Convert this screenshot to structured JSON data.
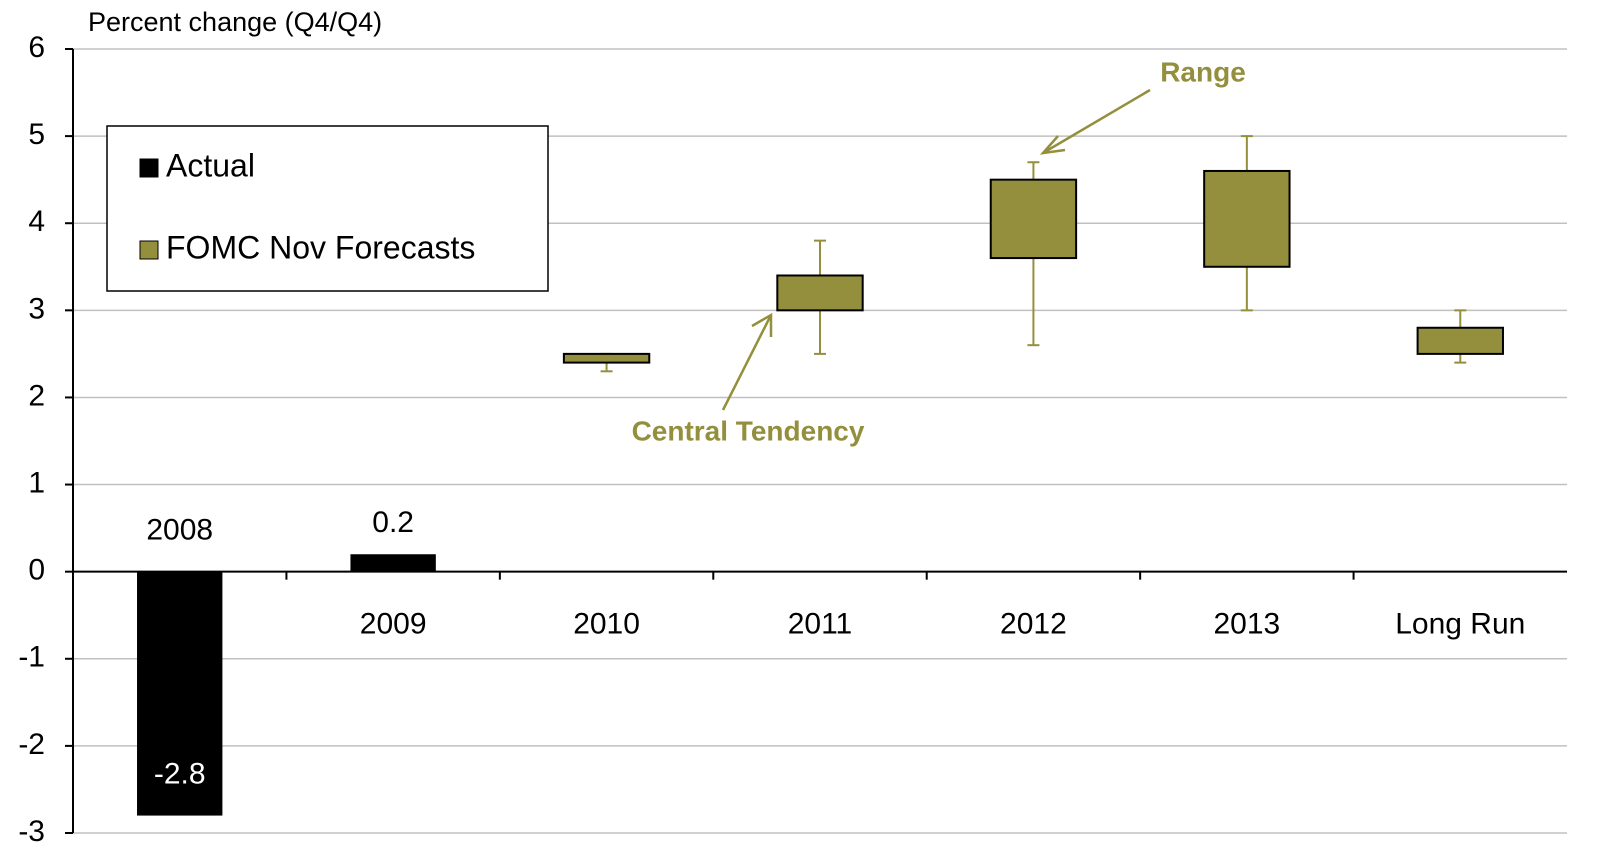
{
  "chart_data": {
    "type": "bar-range",
    "y_label": "Percent change (Q4/Q4)",
    "categories": [
      "2008",
      "2009",
      "2010",
      "2011",
      "2012",
      "2013",
      "Long Run"
    ],
    "series": [
      {
        "name": "Actual",
        "color": "#000000",
        "values": [
          -2.8,
          0.2,
          null,
          null,
          null,
          null,
          null
        ]
      },
      {
        "name": "FOMC Nov Forecasts",
        "color": "#948f3d",
        "central_low": [
          null,
          null,
          2.4,
          3.0,
          3.6,
          3.5,
          2.5
        ],
        "central_high": [
          null,
          null,
          2.5,
          3.4,
          4.5,
          4.6,
          2.8
        ],
        "range_low": [
          null,
          null,
          2.3,
          2.5,
          2.6,
          3.0,
          2.4
        ],
        "range_high": [
          null,
          null,
          2.5,
          3.8,
          4.7,
          5.0,
          3.0
        ]
      }
    ],
    "annotations": [
      {
        "text": "Range"
      },
      {
        "text": "Central Tendency"
      }
    ],
    "annotation_color": "#948f3d",
    "ylim": [
      -3,
      6
    ],
    "yticks": [
      -3,
      -2,
      -1,
      0,
      1,
      2,
      3,
      4,
      5,
      6
    ],
    "grid": true,
    "legend": "upper left"
  }
}
